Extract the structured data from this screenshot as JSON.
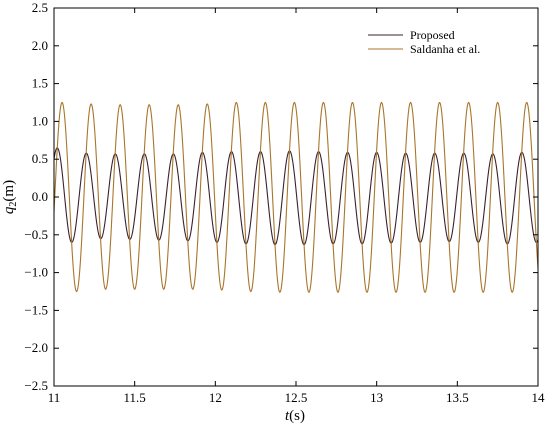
{
  "chart_data": {
    "type": "line",
    "title": "",
    "xlabel": {
      "var": "t",
      "unit": "(s)"
    },
    "ylabel": {
      "var": "q",
      "sub": "2",
      "unit": "(m)"
    },
    "xlim": [
      11,
      14
    ],
    "ylim": [
      -2.5,
      2.5
    ],
    "xticks": [
      11,
      11.5,
      12,
      12.5,
      13,
      13.5,
      14
    ],
    "xtick_labels": [
      "11",
      "11.5",
      "12",
      "12.5",
      "13",
      "13.5",
      "14"
    ],
    "yticks": [
      -2.5,
      -2.0,
      -1.5,
      -1.0,
      -0.5,
      0.0,
      0.5,
      1.0,
      1.5,
      2.0,
      2.5
    ],
    "ytick_labels": [
      "−2.5",
      "−2.0",
      "−1.5",
      "−1.0",
      "−0.5",
      "0.0",
      "0.5",
      "1.0",
      "1.5",
      "2.0",
      "2.5"
    ],
    "grid": false,
    "legend_position": "top-right",
    "series": [
      {
        "name": "Proposed",
        "color": "#3a2230",
        "model": "sinusoid",
        "amplitude_approx": 0.6,
        "period_s": 0.1818,
        "peaks": [
          [
            11.02,
            0.65
          ],
          [
            11.2,
            0.58
          ],
          [
            11.38,
            0.57
          ],
          [
            11.56,
            0.57
          ],
          [
            11.74,
            0.57
          ],
          [
            11.92,
            0.59
          ],
          [
            12.1,
            0.6
          ],
          [
            12.28,
            0.6
          ],
          [
            12.46,
            0.61
          ],
          [
            12.64,
            0.6
          ],
          [
            12.82,
            0.59
          ],
          [
            13.0,
            0.59
          ],
          [
            13.18,
            0.58
          ],
          [
            13.36,
            0.58
          ],
          [
            13.54,
            0.58
          ],
          [
            13.72,
            0.57
          ],
          [
            13.9,
            0.59
          ]
        ],
        "troughs": [
          [
            11.11,
            -0.6
          ],
          [
            11.29,
            -0.55
          ],
          [
            11.47,
            -0.56
          ],
          [
            11.65,
            -0.57
          ],
          [
            11.83,
            -0.58
          ],
          [
            12.01,
            -0.6
          ],
          [
            12.19,
            -0.62
          ],
          [
            12.37,
            -0.63
          ],
          [
            12.55,
            -0.63
          ],
          [
            12.73,
            -0.62
          ],
          [
            12.91,
            -0.62
          ],
          [
            13.09,
            -0.61
          ],
          [
            13.27,
            -0.6
          ],
          [
            13.45,
            -0.59
          ],
          [
            13.63,
            -0.6
          ],
          [
            13.81,
            -0.62
          ],
          [
            13.99,
            -0.6
          ]
        ]
      },
      {
        "name": "Saldanha et al.",
        "color": "#a8762c",
        "model": "sinusoid",
        "amplitude_approx": 1.25,
        "period_s": 0.1818,
        "peaks": [
          [
            11.05,
            1.25
          ],
          [
            11.23,
            1.23
          ],
          [
            11.41,
            1.22
          ],
          [
            11.59,
            1.22
          ],
          [
            11.77,
            1.22
          ],
          [
            11.95,
            1.23
          ],
          [
            12.13,
            1.25
          ],
          [
            12.31,
            1.25
          ],
          [
            12.49,
            1.25
          ],
          [
            12.67,
            1.25
          ],
          [
            12.85,
            1.25
          ],
          [
            13.03,
            1.25
          ],
          [
            13.21,
            1.25
          ],
          [
            13.39,
            1.25
          ],
          [
            13.57,
            1.25
          ],
          [
            13.75,
            1.25
          ],
          [
            13.93,
            1.25
          ]
        ],
        "troughs": [
          [
            11.14,
            -1.25
          ],
          [
            11.32,
            -1.22
          ],
          [
            11.5,
            -1.22
          ],
          [
            11.68,
            -1.22
          ],
          [
            11.86,
            -1.22
          ],
          [
            12.04,
            -1.23
          ],
          [
            12.22,
            -1.25
          ],
          [
            12.4,
            -1.26
          ],
          [
            12.58,
            -1.26
          ],
          [
            12.76,
            -1.26
          ],
          [
            12.94,
            -1.26
          ],
          [
            13.12,
            -1.26
          ],
          [
            13.3,
            -1.26
          ],
          [
            13.48,
            -1.26
          ],
          [
            13.66,
            -1.26
          ],
          [
            13.84,
            -1.26
          ]
        ]
      }
    ]
  }
}
